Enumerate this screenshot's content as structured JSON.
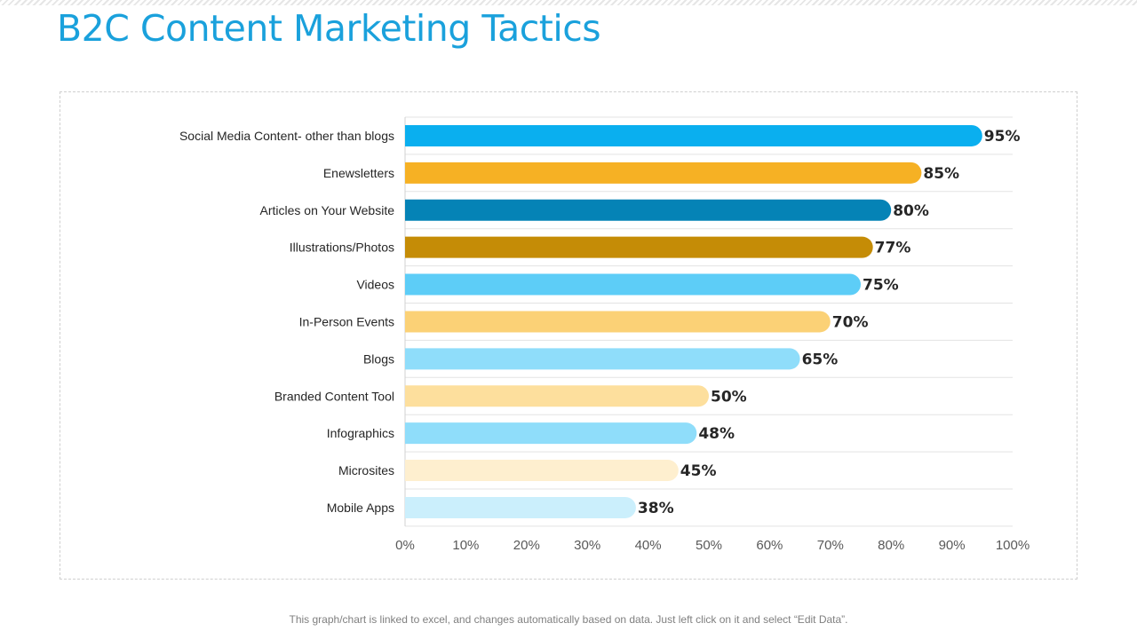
{
  "slide": {
    "title": "B2C Content Marketing Tactics",
    "footnote": "This graph/chart is linked to excel, and changes automatically based on data. Just left click on it and select “Edit Data”."
  },
  "chart_data": {
    "type": "bar",
    "orientation": "horizontal",
    "categories": [
      "Social Media Content- other than blogs",
      "Enewsletters",
      "Articles on Your Website",
      "Illustrations/Photos",
      "Videos",
      "In-Person Events",
      "Blogs",
      "Branded Content Tool",
      "Infographics",
      "Microsites",
      "Mobile Apps"
    ],
    "values": [
      95,
      85,
      80,
      77,
      75,
      70,
      65,
      50,
      48,
      45,
      38
    ],
    "data_labels": [
      "95%",
      "85%",
      "80%",
      "77%",
      "75%",
      "70%",
      "65%",
      "50%",
      "48%",
      "45%",
      "38%"
    ],
    "colors": [
      "#0aafef",
      "#f6b124",
      "#0583b6",
      "#c58c06",
      "#5dcdf7",
      "#fbd176",
      "#8fddfa",
      "#fddf9d",
      "#8fddfa",
      "#feefcf",
      "#cbeffc"
    ],
    "xlim": [
      0,
      100
    ],
    "x_ticks": [
      0,
      10,
      20,
      30,
      40,
      50,
      60,
      70,
      80,
      90,
      100
    ],
    "x_tick_labels": [
      "0%",
      "10%",
      "20%",
      "30%",
      "40%",
      "50%",
      "60%",
      "70%",
      "80%",
      "90%",
      "100%"
    ],
    "grid": "horizontal",
    "legend": "none",
    "title": "",
    "xlabel": "",
    "ylabel": ""
  }
}
